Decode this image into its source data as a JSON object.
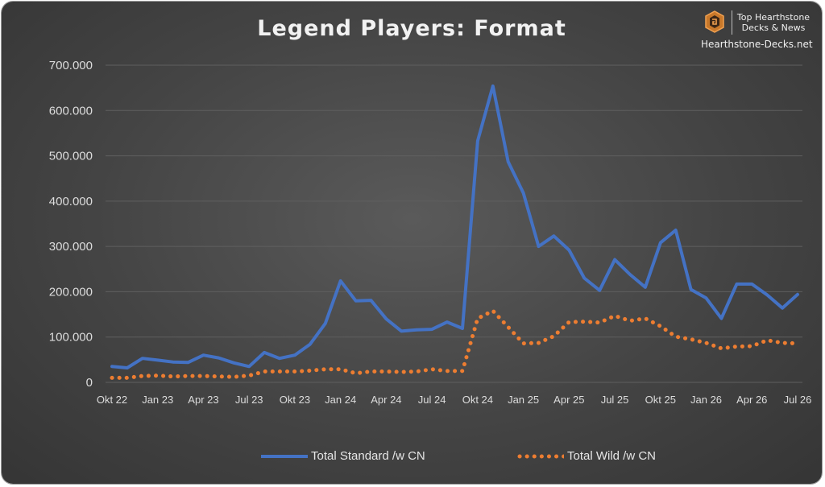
{
  "brand": {
    "line1": "Top Hearthstone",
    "line2": "Decks & News",
    "url": "Hearthstone-Decks.net",
    "logo_icon": "hearthstone-logo-icon"
  },
  "colors": {
    "standard": "#4472C4",
    "wild": "#ED7D31",
    "grid": "#5f5f5f",
    "text": "#dcdcdc"
  },
  "chart_data": {
    "type": "line",
    "title": "Legend Players: Format",
    "xlabel": "",
    "ylabel": "",
    "ylim": [
      0,
      700000
    ],
    "yticks": [
      0,
      100000,
      200000,
      300000,
      400000,
      500000,
      600000,
      700000
    ],
    "ytick_labels": [
      "0",
      "100.000",
      "200.000",
      "300.000",
      "400.000",
      "500.000",
      "600.000",
      "700.000"
    ],
    "x_tick_labels": [
      "Okt 22",
      "Jan 23",
      "Apr 23",
      "Jul 23",
      "Okt 23",
      "Jan 24",
      "Apr 24",
      "Jul 24",
      "Okt 24",
      "Jan 25",
      "Apr 25",
      "Jul 25",
      "Okt 25",
      "Jan 26",
      "Apr 26",
      "Jul 26"
    ],
    "x_tick_every": 3,
    "grid": true,
    "legend_position": "bottom",
    "series": [
      {
        "name": "Total Standard /w CN",
        "style": "solid",
        "values": [
          35000,
          32000,
          53000,
          49000,
          45000,
          44000,
          60000,
          54000,
          43000,
          35000,
          66000,
          53000,
          60000,
          84000,
          130000,
          224000,
          180000,
          181000,
          140000,
          113000,
          116000,
          117000,
          133000,
          119000,
          533000,
          654000,
          487000,
          418000,
          300000,
          323000,
          292000,
          230000,
          203000,
          271000,
          238000,
          210000,
          308000,
          336000,
          205000,
          186000,
          141000,
          217000,
          217000,
          193000,
          164000,
          194000
        ]
      },
      {
        "name": "Total Wild /w CN",
        "style": "dotted",
        "values": [
          10000,
          10000,
          14000,
          15000,
          13000,
          14000,
          14000,
          13000,
          12000,
          15000,
          24000,
          24000,
          24000,
          26000,
          29000,
          29000,
          20000,
          24000,
          24000,
          23000,
          24000,
          29000,
          25000,
          25000,
          141000,
          158000,
          122000,
          86000,
          87000,
          102000,
          133000,
          134000,
          132000,
          147000,
          136000,
          141000,
          124000,
          101000,
          95000,
          87000,
          75000,
          79000,
          80000,
          93000,
          87000,
          86000
        ]
      }
    ]
  }
}
